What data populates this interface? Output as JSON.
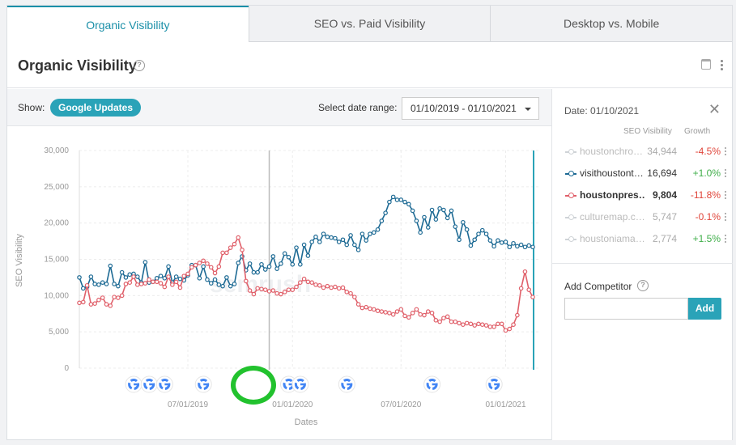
{
  "tabs": [
    "Organic Visibility",
    "SEO vs. Paid Visibility",
    "Desktop vs. Mobile"
  ],
  "page_title": "Organic Visibility",
  "toolbar": {
    "show_label": "Show:",
    "updates_pill": "Google Updates",
    "range_label": "Select date range:",
    "range_value": "01/10/2019 - 01/10/2021"
  },
  "sidebar": {
    "date_label": "Date: 01/10/2021",
    "col_visibility": "SEO Visibility",
    "col_growth": "Growth",
    "competitors": [
      {
        "name": "houstonchro…",
        "value": "34,944",
        "growth": "-4.5%",
        "color": "#cfd3d7",
        "growth_color": "#e0453a",
        "muted": true,
        "bold": false
      },
      {
        "name": "visithoustont…",
        "value": "16,694",
        "growth": "+1.0%",
        "color": "#1d6a94",
        "growth_color": "#3fae49",
        "muted": false,
        "bold": false
      },
      {
        "name": "houstonpres…",
        "value": "9,804",
        "growth": "-11.8%",
        "color": "#e0606a",
        "growth_color": "#e0453a",
        "muted": false,
        "bold": true
      },
      {
        "name": "culturemap.c…",
        "value": "5,747",
        "growth": "-0.1%",
        "color": "#cfd3d7",
        "growth_color": "#e0453a",
        "muted": true,
        "bold": false
      },
      {
        "name": "houstoniama…",
        "value": "2,774",
        "growth": "+1.5%",
        "color": "#cfd3d7",
        "growth_color": "#3fae49",
        "muted": true,
        "bold": false
      }
    ],
    "add_label": "Add Competitor",
    "add_button": "Add"
  },
  "chart_data": {
    "type": "line",
    "ylabel": "SEO Visibility",
    "xlabel": "Dates",
    "ylim": [
      0,
      30000
    ],
    "yticks": [
      "0",
      "5,000",
      "10,000",
      "15,000",
      "20,000",
      "25,000",
      "30,000"
    ],
    "xticks": [
      "07/01/2019",
      "01/01/2020",
      "07/01/2020",
      "01/01/2021"
    ],
    "watermark": "semrush",
    "series": [
      {
        "name": "visithoustont…",
        "color": "#1d6a94",
        "values": [
          12500,
          11000,
          11200,
          12600,
          11600,
          11500,
          11800,
          11600,
          14100,
          11600,
          11300,
          13200,
          12500,
          12900,
          13000,
          12600,
          11800,
          14600,
          11800,
          11900,
          12400,
          12700,
          12400,
          14000,
          11800,
          12600,
          12300,
          12100,
          12800,
          14200,
          14200,
          12400,
          14000,
          12200,
          11700,
          12200,
          11500,
          11300,
          12500,
          11300,
          11600,
          14500,
          15400,
          13500,
          14400,
          13200,
          13200,
          14300,
          13600,
          14000,
          15400,
          13700,
          14400,
          15800,
          15300,
          14300,
          16600,
          14300,
          17000,
          15500,
          17400,
          18100,
          17400,
          18500,
          18100,
          18000,
          17900,
          17400,
          17700,
          17000,
          18300,
          17000,
          16300,
          18500,
          17600,
          18500,
          18700,
          19100,
          20300,
          21400,
          22900,
          23600,
          23200,
          23200,
          22900,
          22600,
          21700,
          20300,
          18700,
          20800,
          19400,
          21800,
          20500,
          22000,
          21800,
          20700,
          21700,
          19500,
          17700,
          20100,
          19100,
          16900,
          17700,
          18500,
          19000,
          18500,
          17600,
          16800,
          17600,
          17300,
          17400,
          16700,
          17200,
          16800,
          17000,
          16700,
          16900,
          16700
        ]
      },
      {
        "name": "houstonpres…",
        "color": "#e0606a",
        "values": [
          9000,
          9100,
          11400,
          8800,
          8900,
          9400,
          9700,
          8800,
          8600,
          9800,
          9700,
          10000,
          11600,
          11800,
          12600,
          11500,
          11600,
          11700,
          12200,
          11900,
          11900,
          11700,
          11200,
          12600,
          11500,
          11900,
          11100,
          12700,
          13000,
          13900,
          14200,
          14500,
          14800,
          14400,
          13900,
          13100,
          14000,
          15900,
          15900,
          16600,
          17100,
          18000,
          16300,
          12000,
          10700,
          10200,
          11000,
          10900,
          10800,
          10600,
          10700,
          10300,
          10200,
          10500,
          10800,
          10800,
          11200,
          11800,
          12300,
          11900,
          11800,
          11500,
          11400,
          11100,
          11300,
          11100,
          11200,
          11000,
          11100,
          10500,
          10300,
          9800,
          8800,
          8300,
          8400,
          8200,
          8100,
          7900,
          7800,
          7700,
          7600,
          7400,
          7800,
          8100,
          7200,
          7000,
          7600,
          8100,
          7400,
          7300,
          7800,
          7600,
          6600,
          6400,
          6900,
          7100,
          6400,
          6400,
          6200,
          6000,
          6200,
          6100,
          5900,
          6100,
          6000,
          5900,
          5700,
          5700,
          6100,
          6100,
          5200,
          5400,
          6000,
          7300,
          11000,
          13300,
          10800,
          9800
        ]
      }
    ],
    "update_markers": [
      9,
      13,
      17,
      27,
      49,
      52,
      64,
      86,
      102,
      124
    ],
    "selected_index": 49,
    "current_index": 117
  }
}
